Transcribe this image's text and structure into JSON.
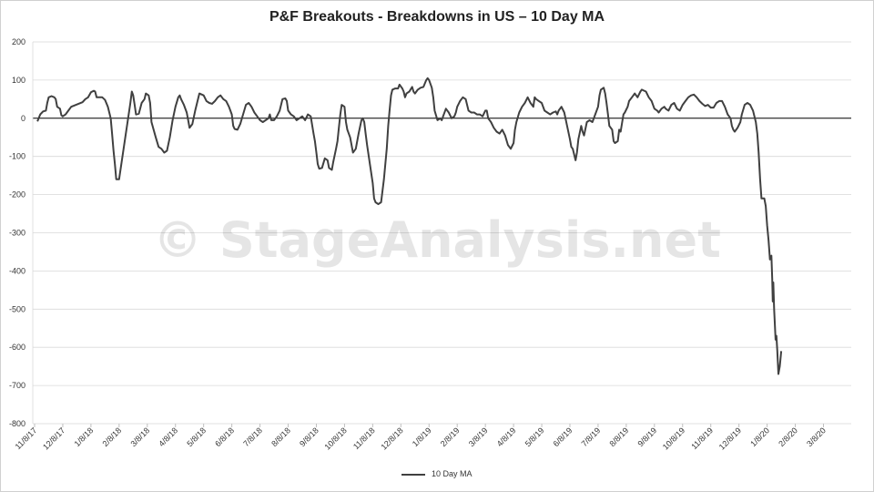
{
  "watermark": "© StageAnalysis.net",
  "chart_data": {
    "type": "line",
    "title": "P&F Breakouts - Breakdowns in US – 10 Day MA",
    "xlabel": "",
    "ylabel": "",
    "ylim": [
      -800,
      200
    ],
    "yticks": [
      200,
      100,
      0,
      -100,
      -200,
      -300,
      -400,
      -500,
      -600,
      -700,
      -800
    ],
    "xticks": [
      "11/8/17",
      "12/8/17",
      "1/8/18",
      "2/8/18",
      "3/8/18",
      "4/8/18",
      "5/8/18",
      "6/8/18",
      "7/8/18",
      "8/8/18",
      "9/8/18",
      "10/8/18",
      "11/8/18",
      "12/8/18",
      "1/8/19",
      "2/8/19",
      "3/8/19",
      "4/8/19",
      "5/8/19",
      "6/8/19",
      "7/8/19",
      "8/8/19",
      "9/8/19",
      "10/8/19",
      "11/8/19",
      "12/8/19",
      "1/8/20",
      "2/8/20",
      "3/8/20"
    ],
    "grid": true,
    "legend_position": "bottom",
    "series": [
      {
        "name": "10 Day MA",
        "color": "#404040",
        "points": [
          [
            0.1,
            -8
          ],
          [
            0.2,
            10
          ],
          [
            0.3,
            18
          ],
          [
            0.4,
            20
          ],
          [
            0.45,
            40
          ],
          [
            0.5,
            55
          ],
          [
            0.6,
            58
          ],
          [
            0.7,
            55
          ],
          [
            0.75,
            50
          ],
          [
            0.8,
            30
          ],
          [
            0.9,
            25
          ],
          [
            0.95,
            8
          ],
          [
            1.0,
            5
          ],
          [
            1.1,
            10
          ],
          [
            1.2,
            20
          ],
          [
            1.3,
            30
          ],
          [
            1.5,
            36
          ],
          [
            1.7,
            42
          ],
          [
            1.8,
            50
          ],
          [
            1.9,
            55
          ],
          [
            2.0,
            68
          ],
          [
            2.1,
            72
          ],
          [
            2.15,
            70
          ],
          [
            2.2,
            55
          ],
          [
            2.4,
            55
          ],
          [
            2.5,
            48
          ],
          [
            2.6,
            30
          ],
          [
            2.7,
            0
          ],
          [
            2.75,
            -40
          ],
          [
            2.8,
            -85
          ],
          [
            2.85,
            -120
          ],
          [
            2.9,
            -160
          ],
          [
            3.0,
            -160
          ],
          [
            3.1,
            -110
          ],
          [
            3.2,
            -60
          ],
          [
            3.3,
            -10
          ],
          [
            3.4,
            40
          ],
          [
            3.45,
            70
          ],
          [
            3.5,
            60
          ],
          [
            3.55,
            35
          ],
          [
            3.6,
            10
          ],
          [
            3.7,
            12
          ],
          [
            3.8,
            40
          ],
          [
            3.9,
            50
          ],
          [
            3.95,
            65
          ],
          [
            4.05,
            60
          ],
          [
            4.1,
            40
          ],
          [
            4.15,
            -10
          ],
          [
            4.3,
            -50
          ],
          [
            4.4,
            -75
          ],
          [
            4.5,
            -80
          ],
          [
            4.6,
            -90
          ],
          [
            4.7,
            -85
          ],
          [
            4.8,
            -50
          ],
          [
            4.9,
            -5
          ],
          [
            5.0,
            30
          ],
          [
            5.1,
            55
          ],
          [
            5.15,
            60
          ],
          [
            5.2,
            50
          ],
          [
            5.3,
            35
          ],
          [
            5.4,
            15
          ],
          [
            5.45,
            -5
          ],
          [
            5.5,
            -25
          ],
          [
            5.6,
            -15
          ],
          [
            5.7,
            20
          ],
          [
            5.8,
            50
          ],
          [
            5.85,
            65
          ],
          [
            6.0,
            60
          ],
          [
            6.1,
            45
          ],
          [
            6.2,
            40
          ],
          [
            6.3,
            38
          ],
          [
            6.4,
            45
          ],
          [
            6.5,
            55
          ],
          [
            6.6,
            60
          ],
          [
            6.7,
            50
          ],
          [
            6.8,
            45
          ],
          [
            6.9,
            30
          ],
          [
            7.0,
            10
          ],
          [
            7.05,
            -20
          ],
          [
            7.1,
            -28
          ],
          [
            7.2,
            -30
          ],
          [
            7.3,
            -15
          ],
          [
            7.4,
            10
          ],
          [
            7.5,
            35
          ],
          [
            7.6,
            40
          ],
          [
            7.7,
            30
          ],
          [
            7.8,
            15
          ],
          [
            7.9,
            5
          ],
          [
            8.0,
            -5
          ],
          [
            8.1,
            -10
          ],
          [
            8.2,
            -5
          ],
          [
            8.3,
            0
          ],
          [
            8.35,
            10
          ],
          [
            8.4,
            -5
          ],
          [
            8.5,
            -5
          ],
          [
            8.6,
            5
          ],
          [
            8.7,
            20
          ],
          [
            8.8,
            50
          ],
          [
            8.9,
            52
          ],
          [
            8.95,
            45
          ],
          [
            9.0,
            20
          ],
          [
            9.1,
            10
          ],
          [
            9.2,
            5
          ],
          [
            9.3,
            -5
          ],
          [
            9.4,
            0
          ],
          [
            9.5,
            5
          ],
          [
            9.6,
            -5
          ],
          [
            9.7,
            10
          ],
          [
            9.8,
            5
          ],
          [
            9.9,
            -40
          ],
          [
            9.95,
            -60
          ],
          [
            10.0,
            -90
          ],
          [
            10.05,
            -120
          ],
          [
            10.1,
            -132
          ],
          [
            10.2,
            -130
          ],
          [
            10.3,
            -105
          ],
          [
            10.4,
            -110
          ],
          [
            10.45,
            -130
          ],
          [
            10.55,
            -135
          ],
          [
            10.6,
            -115
          ],
          [
            10.7,
            -80
          ],
          [
            10.75,
            -60
          ],
          [
            10.8,
            -25
          ],
          [
            10.85,
            10
          ],
          [
            10.9,
            35
          ],
          [
            11.0,
            30
          ],
          [
            11.05,
            -10
          ],
          [
            11.1,
            -30
          ],
          [
            11.2,
            -50
          ],
          [
            11.3,
            -90
          ],
          [
            11.4,
            -80
          ],
          [
            11.5,
            -40
          ],
          [
            11.6,
            -5
          ],
          [
            11.65,
            0
          ],
          [
            11.7,
            -10
          ],
          [
            11.75,
            -40
          ],
          [
            11.8,
            -70
          ],
          [
            11.9,
            -120
          ],
          [
            12.0,
            -170
          ],
          [
            12.05,
            -210
          ],
          [
            12.1,
            -220
          ],
          [
            12.2,
            -225
          ],
          [
            12.3,
            -220
          ],
          [
            12.4,
            -160
          ],
          [
            12.5,
            -80
          ],
          [
            12.55,
            -20
          ],
          [
            12.6,
            20
          ],
          [
            12.65,
            60
          ],
          [
            12.7,
            75
          ],
          [
            12.8,
            78
          ],
          [
            12.9,
            78
          ],
          [
            12.95,
            88
          ],
          [
            13.05,
            78
          ],
          [
            13.1,
            70
          ],
          [
            13.15,
            55
          ],
          [
            13.2,
            65
          ],
          [
            13.3,
            70
          ],
          [
            13.4,
            82
          ],
          [
            13.45,
            70
          ],
          [
            13.5,
            65
          ],
          [
            13.6,
            75
          ],
          [
            13.7,
            80
          ],
          [
            13.8,
            82
          ],
          [
            13.9,
            100
          ],
          [
            13.95,
            105
          ],
          [
            14.0,
            100
          ],
          [
            14.1,
            80
          ],
          [
            14.15,
            55
          ],
          [
            14.2,
            20
          ],
          [
            14.3,
            -5
          ],
          [
            14.4,
            0
          ],
          [
            14.45,
            -5
          ],
          [
            14.5,
            5
          ],
          [
            14.6,
            25
          ],
          [
            14.7,
            15
          ],
          [
            14.8,
            0
          ],
          [
            14.9,
            5
          ],
          [
            14.95,
            15
          ],
          [
            15.0,
            30
          ],
          [
            15.1,
            45
          ],
          [
            15.2,
            55
          ],
          [
            15.3,
            50
          ],
          [
            15.4,
            20
          ],
          [
            15.5,
            15
          ],
          [
            15.6,
            15
          ],
          [
            15.7,
            10
          ],
          [
            15.8,
            10
          ],
          [
            15.9,
            5
          ],
          [
            16.0,
            20
          ],
          [
            16.05,
            20
          ],
          [
            16.1,
            0
          ],
          [
            16.2,
            -10
          ],
          [
            16.3,
            -25
          ],
          [
            16.4,
            -35
          ],
          [
            16.5,
            -40
          ],
          [
            16.6,
            -30
          ],
          [
            16.7,
            -45
          ],
          [
            16.8,
            -70
          ],
          [
            16.9,
            -80
          ],
          [
            17.0,
            -65
          ],
          [
            17.05,
            -30
          ],
          [
            17.1,
            -10
          ],
          [
            17.2,
            15
          ],
          [
            17.3,
            30
          ],
          [
            17.4,
            40
          ],
          [
            17.5,
            55
          ],
          [
            17.6,
            40
          ],
          [
            17.7,
            30
          ],
          [
            17.75,
            55
          ],
          [
            17.8,
            50
          ],
          [
            17.9,
            45
          ],
          [
            18.0,
            40
          ],
          [
            18.1,
            20
          ],
          [
            18.2,
            15
          ],
          [
            18.3,
            10
          ],
          [
            18.4,
            15
          ],
          [
            18.5,
            18
          ],
          [
            18.55,
            10
          ],
          [
            18.6,
            20
          ],
          [
            18.7,
            30
          ],
          [
            18.8,
            15
          ],
          [
            18.9,
            -20
          ],
          [
            19.0,
            -55
          ],
          [
            19.05,
            -75
          ],
          [
            19.1,
            -80
          ],
          [
            19.2,
            -110
          ],
          [
            19.25,
            -90
          ],
          [
            19.3,
            -55
          ],
          [
            19.4,
            -20
          ],
          [
            19.45,
            -35
          ],
          [
            19.5,
            -45
          ],
          [
            19.6,
            -10
          ],
          [
            19.7,
            -5
          ],
          [
            19.8,
            -10
          ],
          [
            19.9,
            10
          ],
          [
            20.0,
            30
          ],
          [
            20.05,
            60
          ],
          [
            20.1,
            75
          ],
          [
            20.2,
            80
          ],
          [
            20.25,
            65
          ],
          [
            20.3,
            40
          ],
          [
            20.35,
            10
          ],
          [
            20.4,
            -20
          ],
          [
            20.5,
            -30
          ],
          [
            20.55,
            -60
          ],
          [
            20.6,
            -65
          ],
          [
            20.7,
            -60
          ],
          [
            20.75,
            -30
          ],
          [
            20.8,
            -35
          ],
          [
            20.9,
            10
          ],
          [
            20.95,
            15
          ],
          [
            21.05,
            30
          ],
          [
            21.1,
            45
          ],
          [
            21.2,
            55
          ],
          [
            21.3,
            65
          ],
          [
            21.4,
            55
          ],
          [
            21.5,
            70
          ],
          [
            21.55,
            75
          ],
          [
            21.7,
            70
          ],
          [
            21.8,
            55
          ],
          [
            21.9,
            45
          ],
          [
            22.0,
            25
          ],
          [
            22.1,
            20
          ],
          [
            22.15,
            15
          ],
          [
            22.25,
            25
          ],
          [
            22.35,
            30
          ],
          [
            22.4,
            25
          ],
          [
            22.5,
            20
          ],
          [
            22.6,
            35
          ],
          [
            22.7,
            40
          ],
          [
            22.8,
            25
          ],
          [
            22.9,
            20
          ],
          [
            23.0,
            35
          ],
          [
            23.1,
            45
          ],
          [
            23.2,
            55
          ],
          [
            23.3,
            60
          ],
          [
            23.4,
            62
          ],
          [
            23.5,
            55
          ],
          [
            23.6,
            45
          ],
          [
            23.7,
            38
          ],
          [
            23.8,
            32
          ],
          [
            23.9,
            35
          ],
          [
            24.0,
            28
          ],
          [
            24.1,
            28
          ],
          [
            24.2,
            40
          ],
          [
            24.3,
            45
          ],
          [
            24.4,
            45
          ],
          [
            24.5,
            30
          ],
          [
            24.6,
            10
          ],
          [
            24.7,
            0
          ],
          [
            24.75,
            -20
          ],
          [
            24.8,
            -30
          ],
          [
            24.85,
            -35
          ],
          [
            24.95,
            -25
          ],
          [
            25.05,
            -10
          ],
          [
            25.1,
            10
          ],
          [
            25.2,
            35
          ],
          [
            25.3,
            40
          ],
          [
            25.4,
            35
          ],
          [
            25.5,
            20
          ],
          [
            25.6,
            -10
          ],
          [
            25.65,
            -40
          ],
          [
            25.7,
            -90
          ],
          [
            25.75,
            -160
          ],
          [
            25.8,
            -210
          ],
          [
            25.9,
            -210
          ],
          [
            25.95,
            -230
          ],
          [
            26.0,
            -280
          ],
          [
            26.05,
            -320
          ],
          [
            26.1,
            -370
          ],
          [
            26.15,
            -360
          ],
          [
            26.18,
            -420
          ],
          [
            26.2,
            -480
          ],
          [
            26.22,
            -430
          ],
          [
            26.25,
            -500
          ],
          [
            26.3,
            -580
          ],
          [
            26.33,
            -570
          ],
          [
            26.36,
            -610
          ],
          [
            26.4,
            -670
          ],
          [
            26.45,
            -650
          ],
          [
            26.5,
            -610
          ]
        ]
      }
    ]
  }
}
